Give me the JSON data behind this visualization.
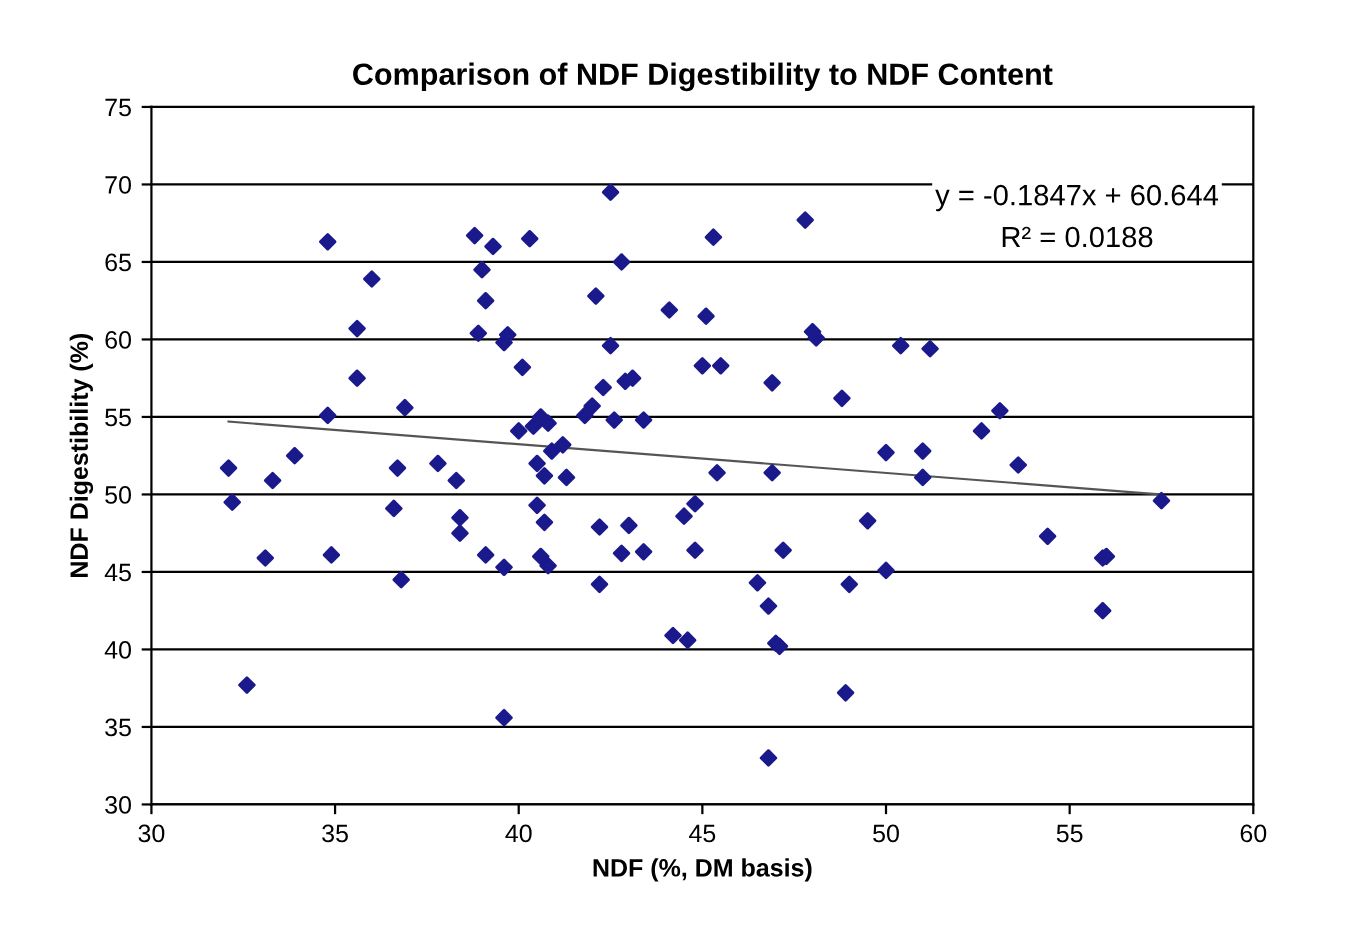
{
  "chart_data": {
    "type": "scatter",
    "title": "Comparison of NDF Digestibility to NDF Content",
    "xlabel": "NDF (%, DM basis)",
    "ylabel": "NDF Digestibility (%)",
    "xlim": [
      30,
      60
    ],
    "xticks": [
      30,
      35,
      40,
      45,
      50,
      55,
      60
    ],
    "ylim": [
      30,
      75
    ],
    "yticks": [
      30,
      35,
      40,
      45,
      50,
      55,
      60,
      65,
      70,
      75
    ],
    "grid": "y",
    "legend": false,
    "annotations": [
      "y = -0.1847x + 60.644",
      "R² = 0.0188"
    ],
    "series": [
      {
        "marker": "diamond",
        "color": "#1a1a8c",
        "x": [
          32.1,
          32.2,
          32.6,
          33.1,
          33.3,
          33.9,
          34.8,
          34.8,
          34.9,
          35.6,
          35.6,
          36.0,
          36.6,
          36.7,
          36.8,
          36.9,
          37.8,
          38.3,
          38.4,
          38.4,
          38.8,
          38.9,
          39.0,
          39.1,
          39.1,
          39.3,
          39.6,
          39.6,
          39.6,
          39.7,
          40.0,
          40.1,
          40.3,
          40.4,
          40.5,
          40.5,
          40.6,
          40.6,
          40.7,
          40.7,
          40.8,
          40.8,
          40.9,
          41.2,
          41.3,
          41.8,
          42.0,
          42.1,
          42.2,
          42.2,
          42.3,
          42.5,
          42.5,
          42.6,
          42.8,
          42.9,
          42.8,
          43.0,
          43.1,
          43.4,
          43.4,
          44.1,
          44.2,
          44.5,
          44.6,
          44.8,
          44.8,
          45.0,
          45.1,
          45.3,
          45.4,
          45.5,
          46.5,
          46.8,
          46.9,
          46.9,
          47.0,
          47.1,
          47.2,
          47.8,
          48.0,
          48.1,
          48.8,
          48.9,
          49.0,
          49.5,
          50.0,
          50.0,
          50.4,
          51.0,
          51.0,
          51.2,
          52.6,
          53.1,
          53.6,
          54.4,
          55.9,
          55.9,
          56.0,
          57.5,
          46.8
        ],
        "values": [
          51.7,
          49.5,
          37.7,
          45.9,
          50.9,
          52.5,
          66.3,
          55.1,
          46.1,
          60.7,
          57.5,
          63.9,
          49.1,
          51.7,
          44.5,
          55.6,
          52.0,
          50.9,
          48.5,
          47.5,
          66.7,
          60.4,
          64.5,
          46.1,
          62.5,
          66.0,
          45.3,
          59.8,
          35.6,
          60.3,
          54.1,
          58.2,
          66.5,
          54.4,
          52.0,
          49.3,
          46.0,
          55.0,
          48.2,
          51.2,
          45.4,
          54.6,
          52.8,
          53.2,
          51.1,
          55.1,
          55.7,
          62.8,
          47.9,
          44.2,
          56.9,
          59.6,
          69.5,
          54.8,
          65.0,
          57.3,
          46.2,
          48.0,
          57.5,
          54.8,
          46.3,
          61.9,
          40.9,
          48.6,
          40.6,
          49.4,
          46.4,
          58.3,
          61.5,
          66.6,
          51.4,
          58.3,
          44.3,
          42.8,
          51.4,
          57.2,
          40.4,
          40.2,
          46.4,
          67.7,
          60.5,
          60.1,
          56.2,
          37.2,
          44.2,
          48.3,
          52.7,
          45.1,
          59.6,
          52.8,
          51.1,
          59.4,
          54.1,
          55.4,
          51.9,
          47.3,
          42.5,
          45.9,
          46.0,
          49.6,
          33.0
        ]
      },
      {
        "type": "line",
        "marker": "none",
        "color": "#555555",
        "x": [
          32.1,
          57.5
        ],
        "values": [
          54.7,
          50.0
        ]
      }
    ]
  }
}
